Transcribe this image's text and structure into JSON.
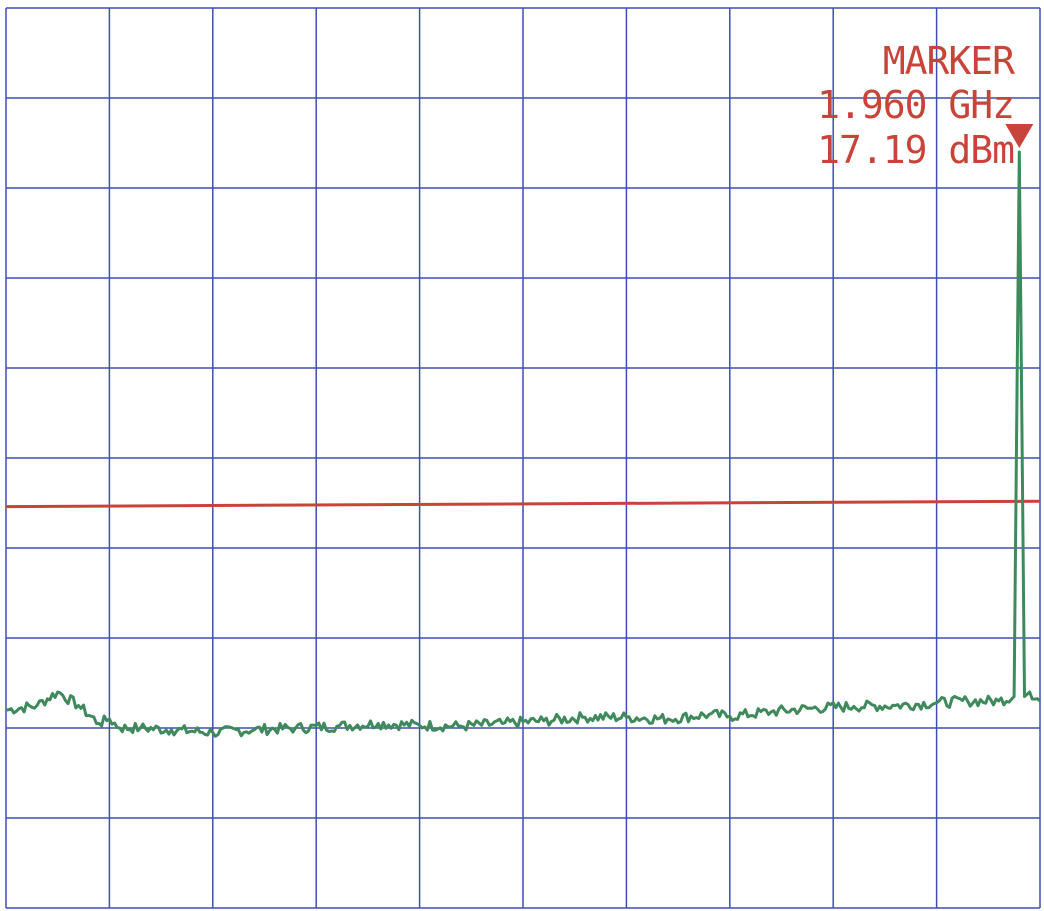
{
  "marker": {
    "title": "MARKER",
    "frequency": "1.960 GHz",
    "level": "17.19 dBm"
  },
  "colors": {
    "grid": "#3f4fb0",
    "reference_line": "#c8443a",
    "trace": "#3f8a5c",
    "marker_text": "#c8443a",
    "background": "#ffffff"
  },
  "chart_data": {
    "type": "line",
    "title": "",
    "xlabel": "",
    "ylabel": "",
    "grid": true,
    "grid_divisions": {
      "x": 10,
      "y": 10
    },
    "xlim": [
      0,
      10
    ],
    "ylim": [
      0,
      10
    ],
    "reference_line": {
      "y_start": 4.46,
      "y_end": 4.52
    },
    "series": [
      {
        "x": [
          0,
          0.3,
          0.5,
          0.7,
          0.9,
          1.0,
          1.1,
          1.3,
          1.6,
          2.0,
          2.4,
          2.8,
          3.2,
          3.6,
          4.0,
          4.4,
          4.8,
          5.2,
          5.6,
          6.0,
          6.4,
          6.8,
          7.0,
          7.4,
          7.8,
          8.2,
          8.6,
          9.0,
          9.3,
          9.6,
          9.75,
          9.8,
          9.85,
          9.9,
          10.0
        ],
        "values": [
          2.2,
          2.25,
          2.4,
          2.25,
          2.05,
          2.1,
          2.0,
          2.0,
          1.98,
          1.95,
          1.98,
          2.0,
          2.02,
          2.05,
          2.03,
          2.02,
          2.05,
          2.08,
          2.12,
          2.12,
          2.1,
          2.15,
          2.13,
          2.18,
          2.22,
          2.24,
          2.25,
          2.28,
          2.3,
          2.3,
          2.35,
          8.4,
          2.35,
          2.4,
          2.3
        ]
      }
    ]
  }
}
